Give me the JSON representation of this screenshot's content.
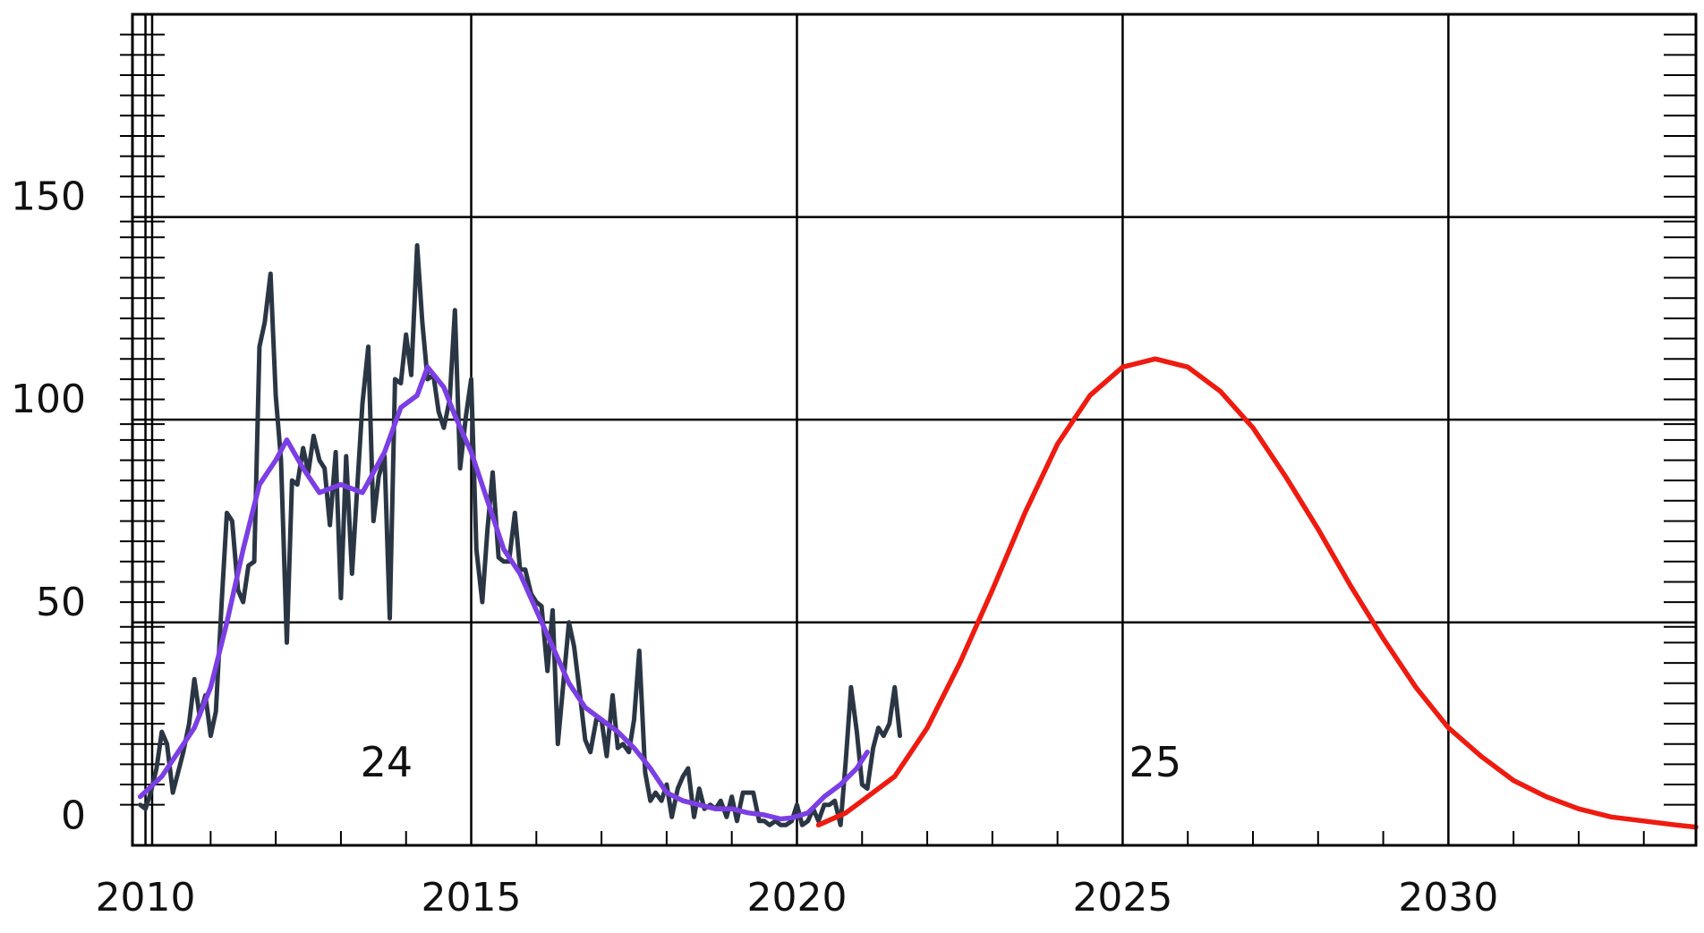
{
  "chart_data": {
    "type": "line",
    "title": "",
    "xlabel": "",
    "ylabel": "",
    "xlim": [
      2009.8,
      2033.8
    ],
    "ylim": [
      -5,
      200
    ],
    "x_ticks": [
      2010,
      2015,
      2020,
      2025,
      2030
    ],
    "x_tick_labels": [
      "2010",
      "2015",
      "2020",
      "2025",
      "2030"
    ],
    "y_ticks": [
      0,
      50,
      100,
      150
    ],
    "y_tick_labels": [
      "0",
      "50",
      "100",
      "150"
    ],
    "grid": true,
    "annotations": [
      {
        "text": "24",
        "x": 2013.7,
        "y": 12
      },
      {
        "text": "25",
        "x": 2025.5,
        "y": 12
      }
    ],
    "series": [
      {
        "key": "monthly",
        "color": "#2b3644",
        "points": [
          [
            2009.92,
            5
          ],
          [
            2010.0,
            4
          ],
          [
            2010.08,
            8
          ],
          [
            2010.17,
            14
          ],
          [
            2010.25,
            23
          ],
          [
            2010.33,
            20
          ],
          [
            2010.42,
            8
          ],
          [
            2010.5,
            13
          ],
          [
            2010.58,
            18
          ],
          [
            2010.67,
            25
          ],
          [
            2010.75,
            36
          ],
          [
            2010.83,
            27
          ],
          [
            2010.92,
            32
          ],
          [
            2011.0,
            22
          ],
          [
            2011.08,
            28
          ],
          [
            2011.17,
            55
          ],
          [
            2011.25,
            77
          ],
          [
            2011.33,
            75
          ],
          [
            2011.42,
            58
          ],
          [
            2011.5,
            55
          ],
          [
            2011.58,
            64
          ],
          [
            2011.67,
            65
          ],
          [
            2011.75,
            118
          ],
          [
            2011.83,
            124
          ],
          [
            2011.92,
            136
          ],
          [
            2012.0,
            106
          ],
          [
            2012.08,
            90
          ],
          [
            2012.17,
            45
          ],
          [
            2012.25,
            85
          ],
          [
            2012.33,
            84
          ],
          [
            2012.42,
            93
          ],
          [
            2012.5,
            87
          ],
          [
            2012.58,
            96
          ],
          [
            2012.67,
            90
          ],
          [
            2012.75,
            88
          ],
          [
            2012.83,
            74
          ],
          [
            2012.92,
            92
          ],
          [
            2013.0,
            56
          ],
          [
            2013.08,
            91
          ],
          [
            2013.17,
            62
          ],
          [
            2013.25,
            83
          ],
          [
            2013.33,
            104
          ],
          [
            2013.42,
            118
          ],
          [
            2013.5,
            75
          ],
          [
            2013.58,
            86
          ],
          [
            2013.67,
            91
          ],
          [
            2013.75,
            51
          ],
          [
            2013.83,
            110
          ],
          [
            2013.92,
            109
          ],
          [
            2014.0,
            121
          ],
          [
            2014.08,
            111
          ],
          [
            2014.17,
            143
          ],
          [
            2014.25,
            124
          ],
          [
            2014.33,
            110
          ],
          [
            2014.42,
            111
          ],
          [
            2014.5,
            102
          ],
          [
            2014.58,
            98
          ],
          [
            2014.67,
            105
          ],
          [
            2014.75,
            127
          ],
          [
            2014.83,
            88
          ],
          [
            2014.92,
            101
          ],
          [
            2015.0,
            110
          ],
          [
            2015.08,
            68
          ],
          [
            2015.17,
            55
          ],
          [
            2015.25,
            73
          ],
          [
            2015.33,
            87
          ],
          [
            2015.42,
            66
          ],
          [
            2015.5,
            65
          ],
          [
            2015.58,
            65
          ],
          [
            2015.67,
            77
          ],
          [
            2015.75,
            63
          ],
          [
            2015.83,
            63
          ],
          [
            2015.92,
            57
          ],
          [
            2016.0,
            55
          ],
          [
            2016.08,
            54
          ],
          [
            2016.17,
            38
          ],
          [
            2016.25,
            53
          ],
          [
            2016.33,
            20
          ],
          [
            2016.42,
            36
          ],
          [
            2016.5,
            50
          ],
          [
            2016.58,
            44
          ],
          [
            2016.67,
            32
          ],
          [
            2016.75,
            21
          ],
          [
            2016.83,
            18
          ],
          [
            2016.92,
            26
          ],
          [
            2017.0,
            26
          ],
          [
            2017.08,
            17
          ],
          [
            2017.17,
            32
          ],
          [
            2017.25,
            19
          ],
          [
            2017.33,
            20
          ],
          [
            2017.42,
            18
          ],
          [
            2017.5,
            26
          ],
          [
            2017.58,
            43
          ],
          [
            2017.67,
            13
          ],
          [
            2017.75,
            6
          ],
          [
            2017.83,
            8
          ],
          [
            2017.92,
            6
          ],
          [
            2018.0,
            10
          ],
          [
            2018.08,
            2
          ],
          [
            2018.17,
            9
          ],
          [
            2018.25,
            12
          ],
          [
            2018.33,
            14
          ],
          [
            2018.42,
            2
          ],
          [
            2018.5,
            9
          ],
          [
            2018.58,
            4
          ],
          [
            2018.67,
            5
          ],
          [
            2018.75,
            4
          ],
          [
            2018.83,
            6
          ],
          [
            2018.92,
            2
          ],
          [
            2019.0,
            7
          ],
          [
            2019.08,
            1
          ],
          [
            2019.17,
            8
          ],
          [
            2019.25,
            8
          ],
          [
            2019.33,
            8
          ],
          [
            2019.42,
            1
          ],
          [
            2019.5,
            1
          ],
          [
            2019.58,
            0
          ],
          [
            2019.67,
            1
          ],
          [
            2019.75,
            0
          ],
          [
            2019.83,
            0
          ],
          [
            2019.92,
            1
          ],
          [
            2020.0,
            5
          ],
          [
            2020.08,
            0
          ],
          [
            2020.17,
            1
          ],
          [
            2020.25,
            4
          ],
          [
            2020.33,
            1
          ],
          [
            2020.42,
            5
          ],
          [
            2020.5,
            5
          ],
          [
            2020.58,
            6
          ],
          [
            2020.67,
            0
          ],
          [
            2020.75,
            16
          ],
          [
            2020.83,
            34
          ],
          [
            2020.92,
            23
          ],
          [
            2021.0,
            10
          ],
          [
            2021.08,
            9
          ],
          [
            2021.17,
            19
          ],
          [
            2021.25,
            24
          ],
          [
            2021.33,
            22
          ],
          [
            2021.42,
            25
          ],
          [
            2021.5,
            34
          ],
          [
            2021.58,
            22
          ]
        ]
      },
      {
        "key": "smoothed",
        "color": "#7b3fe4",
        "points": [
          [
            2009.92,
            7
          ],
          [
            2010.25,
            12
          ],
          [
            2010.5,
            18
          ],
          [
            2010.75,
            24
          ],
          [
            2011.0,
            34
          ],
          [
            2011.25,
            50
          ],
          [
            2011.5,
            68
          ],
          [
            2011.75,
            84
          ],
          [
            2012.0,
            90
          ],
          [
            2012.17,
            95
          ],
          [
            2012.42,
            88
          ],
          [
            2012.67,
            82
          ],
          [
            2013.0,
            84
          ],
          [
            2013.33,
            82
          ],
          [
            2013.67,
            92
          ],
          [
            2013.92,
            103
          ],
          [
            2014.17,
            106
          ],
          [
            2014.33,
            113
          ],
          [
            2014.58,
            108
          ],
          [
            2014.75,
            101
          ],
          [
            2015.0,
            92
          ],
          [
            2015.25,
            80
          ],
          [
            2015.5,
            68
          ],
          [
            2015.75,
            62
          ],
          [
            2016.0,
            53
          ],
          [
            2016.25,
            44
          ],
          [
            2016.5,
            35
          ],
          [
            2016.75,
            29
          ],
          [
            2017.0,
            26
          ],
          [
            2017.25,
            23
          ],
          [
            2017.5,
            19
          ],
          [
            2017.75,
            14
          ],
          [
            2018.0,
            8
          ],
          [
            2018.25,
            6
          ],
          [
            2018.5,
            5
          ],
          [
            2018.75,
            4
          ],
          [
            2019.0,
            4
          ],
          [
            2019.25,
            3
          ],
          [
            2019.5,
            2.5
          ],
          [
            2019.75,
            1.5
          ],
          [
            2019.92,
            1.8
          ],
          [
            2020.17,
            3
          ],
          [
            2020.42,
            7
          ],
          [
            2020.67,
            10
          ],
          [
            2020.92,
            14
          ],
          [
            2021.08,
            18
          ]
        ]
      },
      {
        "key": "predicted",
        "color": "#ee1b10",
        "points": [
          [
            2020.33,
            0
          ],
          [
            2020.75,
            3
          ],
          [
            2021.0,
            6
          ],
          [
            2021.5,
            12
          ],
          [
            2022.0,
            24
          ],
          [
            2022.5,
            40
          ],
          [
            2023.0,
            58
          ],
          [
            2023.5,
            77
          ],
          [
            2024.0,
            94
          ],
          [
            2024.5,
            106
          ],
          [
            2025.0,
            113
          ],
          [
            2025.5,
            115
          ],
          [
            2026.0,
            113
          ],
          [
            2026.5,
            107
          ],
          [
            2027.0,
            98
          ],
          [
            2027.5,
            86
          ],
          [
            2028.0,
            73
          ],
          [
            2028.5,
            59
          ],
          [
            2029.0,
            46
          ],
          [
            2029.5,
            34
          ],
          [
            2030.0,
            24
          ],
          [
            2030.5,
            17
          ],
          [
            2031.0,
            11
          ],
          [
            2031.5,
            7
          ],
          [
            2032.0,
            4
          ],
          [
            2032.5,
            2
          ],
          [
            2033.0,
            1
          ],
          [
            2033.5,
            0
          ],
          [
            2033.8,
            -0.5
          ]
        ]
      }
    ]
  }
}
